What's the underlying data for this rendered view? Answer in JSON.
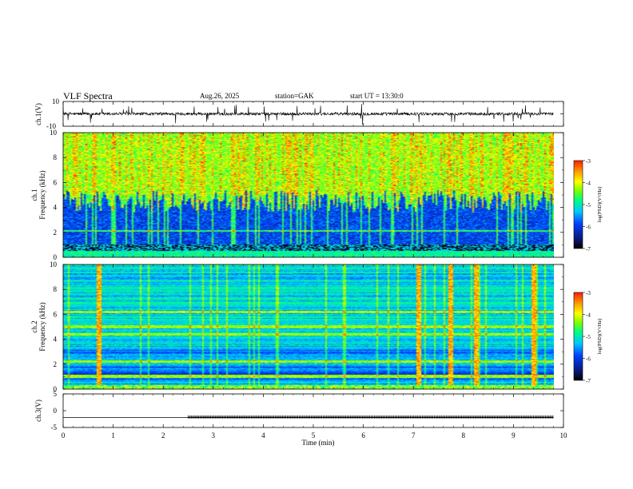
{
  "chart_data": {
    "type": "heatmap",
    "title": "VLF  Spectra",
    "date": "Aug.26, 2025",
    "station": "station=GAK",
    "start": "start  UT  =   13:30:0",
    "xlabel": "Time  (min)",
    "xlim": [
      0,
      10
    ],
    "xticks": [
      "0",
      "1",
      "2",
      "3",
      "4",
      "5",
      "6",
      "7",
      "8",
      "9",
      "10"
    ],
    "panels": [
      {
        "id": "ch1-waveform",
        "type": "line",
        "ylabel": "ch.1(V)",
        "ylim": [
          -10,
          10
        ],
        "yticks": [
          "10",
          "-10"
        ],
        "baseline": 0,
        "noise_amplitude": 1.2,
        "spike_amplitude": 8
      },
      {
        "id": "ch1-spectrogram",
        "type": "heatmap",
        "ylabel": "ch.1\nFrequency (kHz)",
        "ylim": [
          0,
          10
        ],
        "yticks": [
          "0",
          "2",
          "4",
          "6",
          "8",
          "10"
        ],
        "description_bands": "strong broadband sferics above ~4 kHz, weak below"
      },
      {
        "id": "ch2-spectrogram",
        "type": "heatmap",
        "ylabel": "ch.2\nFrequency (kHz)",
        "ylim": [
          0,
          10
        ],
        "yticks": [
          "0",
          "2",
          "4",
          "6",
          "8",
          "10"
        ],
        "strong_sferics_min": [
          0.7,
          7.1,
          7.75,
          8.25,
          9.4
        ],
        "bright_lines_khz": [
          6.2,
          5.0,
          4.4,
          2.2,
          1.0
        ]
      },
      {
        "id": "ch3-waveform",
        "type": "line",
        "ylabel": "ch.3(V)",
        "ylim": [
          -5,
          5
        ],
        "yticks": [
          "5",
          "0",
          "-5"
        ],
        "segments": [
          {
            "from_min": 0.0,
            "to_min": 2.5,
            "value": -2.0,
            "style": "line"
          },
          {
            "from_min": 2.5,
            "to_min": 9.8,
            "value": -2.0,
            "style": "pulses"
          }
        ]
      }
    ],
    "colorbars": [
      {
        "id": "colorbar-ch1",
        "label": "log(PSD)(V²/Hz)",
        "range": [
          -7,
          -3
        ],
        "ticks": [
          "-3",
          "-4",
          "-5",
          "-6",
          "-7"
        ]
      },
      {
        "id": "colorbar-ch2",
        "label": "log(PSD)(V²/Hz)",
        "range": [
          -7,
          -3
        ],
        "ticks": [
          "-3",
          "-4",
          "-5",
          "-6",
          "-7"
        ]
      }
    ],
    "colormap": [
      "#000000",
      "#0a1a80",
      "#0040ff",
      "#00c8ff",
      "#00ff80",
      "#80ff00",
      "#ffff00",
      "#ffa000",
      "#ff1e00"
    ]
  }
}
